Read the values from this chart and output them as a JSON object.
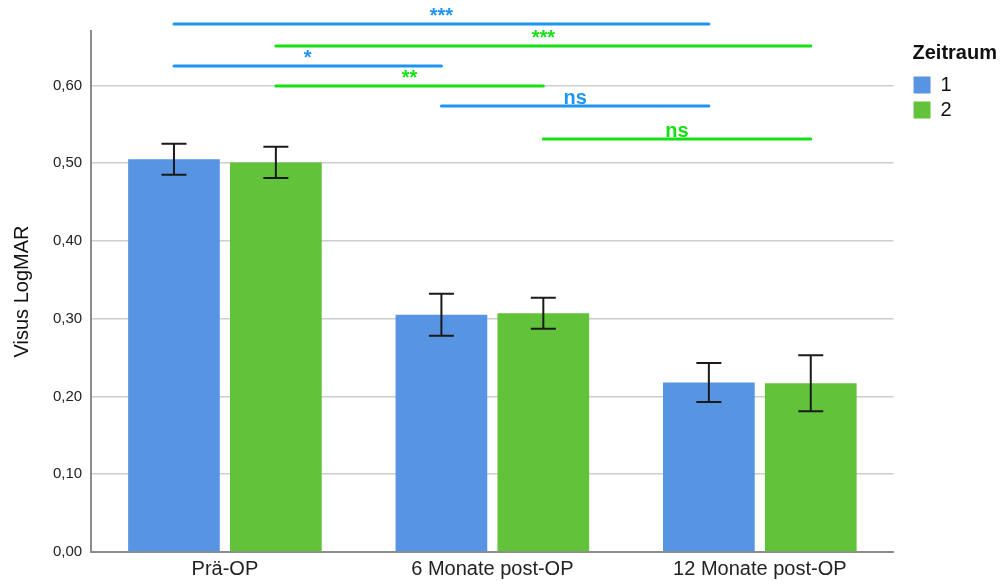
{
  "chart_data": {
    "type": "bar",
    "ylabel": "Visus LogMAR",
    "legend_title": "Zeitraum",
    "categories": [
      "Prä-OP",
      "6 Monate post-OP",
      "12 Monate post-OP"
    ],
    "series": [
      {
        "name": "1",
        "color": "#5795e3",
        "values": [
          0.505,
          0.305,
          0.218
        ],
        "errors": [
          0.02,
          0.027,
          0.025
        ]
      },
      {
        "name": "2",
        "color": "#62c23a",
        "values": [
          0.501,
          0.307,
          0.217
        ],
        "errors": [
          0.02,
          0.02,
          0.036
        ]
      }
    ],
    "ylim": [
      0,
      0.67
    ],
    "yticks": [
      {
        "value": 0,
        "label": "0,00"
      },
      {
        "value": 0.1,
        "label": "0,10"
      },
      {
        "value": 0.2,
        "label": "0,20"
      },
      {
        "value": 0.3,
        "label": "0,30"
      },
      {
        "value": 0.4,
        "label": "0,40"
      },
      {
        "value": 0.5,
        "label": "0,50"
      },
      {
        "value": 0.6,
        "label": "0,60"
      }
    ],
    "grid": "y",
    "legend": "top right",
    "annotations": [
      "***",
      "***",
      "*",
      "**",
      "ns",
      "ns"
    ]
  }
}
